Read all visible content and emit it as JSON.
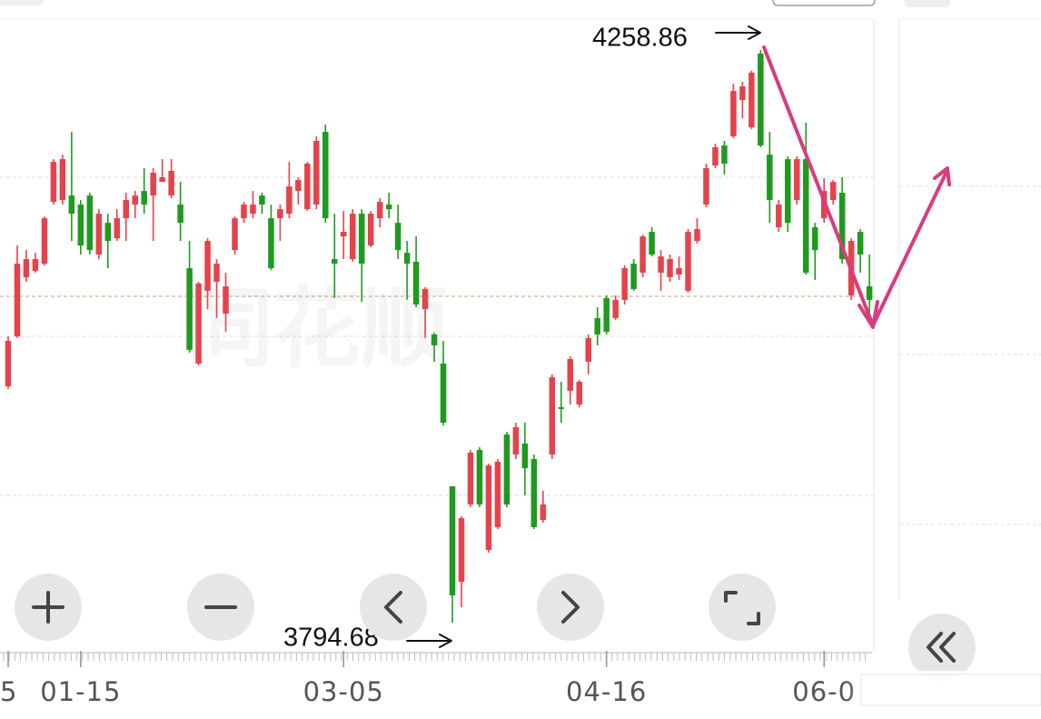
{
  "chart_data": {
    "type": "candlestick",
    "watermark": "同花顺",
    "categories": [
      "5",
      null,
      null,
      null,
      null,
      null,
      null,
      null,
      "01-15",
      null,
      null,
      null,
      null,
      null,
      null,
      null,
      null,
      null,
      null,
      null,
      null,
      null,
      null,
      null,
      null,
      null,
      null,
      null,
      null,
      null,
      null,
      null,
      null,
      null,
      null,
      null,
      null,
      "03-05",
      null,
      null,
      null,
      null,
      null,
      null,
      null,
      null,
      null,
      null,
      null,
      null,
      null,
      null,
      null,
      null,
      null,
      null,
      null,
      null,
      null,
      null,
      null,
      null,
      null,
      null,
      null,
      null,
      "04-16",
      null,
      null,
      null,
      null,
      null,
      null,
      null,
      null,
      null,
      null,
      null,
      null,
      null,
      null,
      null,
      null,
      null,
      null,
      null,
      null,
      null,
      null,
      null,
      "06-0",
      null,
      null,
      null,
      null,
      null
    ],
    "open": [
      3986.3,
      4026.8,
      4074.7,
      4079.8,
      4085.7,
      4135.8,
      4137.3,
      4140.9,
      4133.6,
      4140.9,
      4093.1,
      4118.8,
      4106.3,
      4122.5,
      4133.6,
      4144.6,
      4140.9,
      4152.0,
      4140.9,
      4133.6,
      4082.0,
      4004.7,
      4063.7,
      4071.0,
      4045.2,
      4096.7,
      4122.5,
      4126.2,
      4140.9,
      4122.5,
      4122.5,
      4126.2,
      4144.6,
      4129.9,
      4133.6,
      4192.5,
      4089.4,
      4107.8,
      4089.4,
      4126.2,
      4100.4,
      4122.5,
      4133.6,
      4118.8,
      4094.5,
      4087.2,
      4048.9,
      4028.3,
      4004.7,
      3905.2,
      3827.8,
      3890.5,
      3934.7,
      3853.6,
      3872.1,
      3947.2,
      3931.0,
      3939.9,
      3927.3,
      3878.0,
      3931.0,
      3969.3,
      3982.6,
      3971.5,
      4006.2,
      4041.6,
      4057.8,
      4041.6,
      4056.3,
      4085.7,
      4078.4,
      4111.5,
      4078.4,
      4074.7,
      4076.9,
      4063.7,
      4104.1,
      4133.6,
      4165.3,
      4181.5,
      4188.9,
      4218.3,
      4196.2,
      4256.0,
      4174.1,
      4115.2,
      4170.4,
      4137.3,
      4170.4,
      4115.2,
      4122.5,
      4137.3,
      4143.2,
      4060.0,
      4111.5,
      4067.3
    ],
    "high": [
      4026.8,
      4100.4,
      4096.7,
      4094.5,
      4124.0,
      4170.4,
      4174.1,
      4192.5,
      4137.3,
      4143.2,
      4129.9,
      4126.2,
      4129.9,
      4143.2,
      4144.6,
      4163.1,
      4163.1,
      4170.4,
      4170.4,
      4152.0,
      4104.1,
      4071.0,
      4106.3,
      4089.4,
      4078.4,
      4124.0,
      4135.8,
      4144.6,
      4143.2,
      4133.6,
      4133.6,
      4168.2,
      4155.7,
      4168.2,
      4188.9,
      4198.4,
      4126.2,
      4128.4,
      4129.9,
      4129.9,
      4128.4,
      4138.7,
      4143.2,
      4133.6,
      4104.1,
      4107.8,
      4066.6,
      4029.8,
      4023.1,
      3905.2,
      3880.9,
      3934.7,
      3936.9,
      3923.6,
      3927.3,
      3949.4,
      3956.8,
      3956.8,
      3931.0,
      3901.5,
      3995.9,
      3990.0,
      4010.6,
      3991.4,
      4028.3,
      4050.4,
      4060.0,
      4060.0,
      4084.2,
      4089.4,
      4109.3,
      4115.2,
      4096.7,
      4093.1,
      4091.6,
      4113.7,
      4122.5,
      4166.8,
      4183.0,
      4185.2,
      4231.6,
      4233.1,
      4242.0,
      4258.86,
      4192.5,
      4137.3,
      4172.7,
      4172.7,
      4199.9,
      4118.8,
      4155.0,
      4153.5,
      4155.7,
      4106.3,
      4113.7,
      4093.1
    ],
    "low": [
      3984.1,
      4025.4,
      4071.0,
      4078.4,
      4084.2,
      4133.6,
      4133.6,
      4104.1,
      4093.1,
      4093.1,
      4089.4,
      4082.0,
      4104.1,
      4104.1,
      4122.5,
      4126.2,
      4104.1,
      4152.0,
      4138.7,
      4104.1,
      4013.6,
      4003.2,
      4048.9,
      4041.6,
      4030.5,
      4093.1,
      4118.8,
      4122.5,
      4126.2,
      4080.5,
      4104.1,
      4122.5,
      4133.6,
      4128.4,
      4129.9,
      4118.8,
      4057.8,
      4089.4,
      4087.2,
      4054.8,
      4099.0,
      4115.2,
      4122.5,
      4089.4,
      4056.3,
      4050.4,
      4025.4,
      4006.2,
      3954.6,
      3794.68,
      3807.2,
      3888.3,
      3888.3,
      3851.4,
      3870.6,
      3888.3,
      3927.3,
      3897.8,
      3870.6,
      3875.7,
      3927.3,
      3956.8,
      3971.5,
      3969.3,
      3995.9,
      4019.5,
      4028.3,
      4040.1,
      4052.6,
      4063.7,
      4074.7,
      4091.6,
      4063.7,
      4071.0,
      4072.5,
      4062.2,
      4101.9,
      4131.4,
      4163.1,
      4157.9,
      4187.4,
      4203.6,
      4194.8,
      4180.0,
      4118.8,
      4111.5,
      4111.5,
      4133.6,
      4076.9,
      4072.5,
      4118.8,
      4133.6,
      4085.7,
      4056.3,
      4078.4,
      4041.6
    ],
    "close": [
      4023.1,
      4085.7,
      4089.4,
      4089.4,
      4122.5,
      4168.2,
      4170.4,
      4126.2,
      4100.4,
      4096.7,
      4126.2,
      4104.1,
      4122.5,
      4137.3,
      4140.9,
      4133.6,
      4159.4,
      4155.7,
      4160.9,
      4118.8,
      4015.8,
      4069.6,
      4104.1,
      4085.7,
      4067.3,
      4122.5,
      4133.6,
      4133.6,
      4133.6,
      4082.0,
      4129.9,
      4148.3,
      4153.5,
      4166.8,
      4185.2,
      4122.5,
      4085.7,
      4111.5,
      4126.2,
      4085.7,
      4126.2,
      4135.8,
      4129.9,
      4096.7,
      4085.7,
      4052.6,
      4065.1,
      4019.5,
      3956.8,
      3816.8,
      3879.4,
      3932.5,
      3890.5,
      3922.2,
      3925.1,
      3890.5,
      3953.1,
      3919.9,
      3872.1,
      3890.5,
      3993.6,
      3967.9,
      4008.4,
      3990.0,
      4025.4,
      4028.3,
      4030.5,
      4056.3,
      4082.0,
      4065.1,
      4107.8,
      4093.1,
      4091.6,
      4089.4,
      4082.0,
      4111.5,
      4113.7,
      4163.1,
      4180.0,
      4166.8,
      4225.7,
      4229.4,
      4240.5,
      4181.5,
      4137.3,
      4133.6,
      4118.8,
      4170.4,
      4078.4,
      4096.7,
      4144.6,
      4152.0,
      4089.4,
      4104.1,
      4093.1,
      4056.3
    ],
    "up_color": "#e5434b",
    "down_color": "#1f9a1f",
    "ylim": [
      3772.6,
      4283.2
    ]
  }
}
